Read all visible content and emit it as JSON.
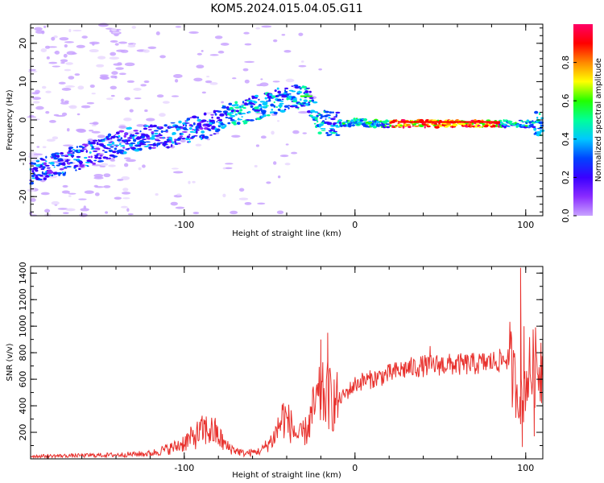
{
  "title": "KOM5.2024.015.04.05.G11",
  "chart_data": [
    {
      "type": "heatmap",
      "xlabel": "Height of straight line (km)",
      "ylabel": "Frequency (Hz)",
      "xlim": [
        -190,
        110
      ],
      "ylim": [
        -25,
        25
      ],
      "x_ticks": [
        -100,
        0,
        100
      ],
      "y_ticks": [
        -20,
        -10,
        0,
        10,
        20
      ],
      "colorbar": {
        "label": "Normalized spectral amplitude",
        "range": [
          0,
          1
        ],
        "ticks": [
          "0.0",
          "0.2",
          "0.4",
          "0.6",
          "0.8"
        ],
        "colormap": [
          "#e9d8ff",
          "#c9a3ff",
          "#8a2bff",
          "#3a00ff",
          "#0044ff",
          "#00c8ff",
          "#00ff99",
          "#22ff00",
          "#ffff00",
          "#ff8800",
          "#ff0000",
          "#ff0066"
        ]
      },
      "ridge": {
        "x": [
          -190,
          -170,
          -150,
          -130,
          -110,
          -90,
          -75,
          -60,
          -45,
          -35,
          -28,
          -22,
          -15,
          -5,
          0,
          10,
          20,
          40,
          60,
          80,
          90,
          100,
          110
        ],
        "y": [
          -14,
          -11,
          -8,
          -5,
          -4,
          -2,
          1,
          3,
          5,
          6,
          6,
          0,
          -1,
          -1,
          -0.5,
          -1,
          -1,
          -1,
          -1,
          -1,
          -1,
          -1,
          -1
        ]
      }
    },
    {
      "type": "line",
      "xlabel": "Height of straight line (km)",
      "ylabel": "SNR (v/v)",
      "xlim": [
        -190,
        110
      ],
      "ylim": [
        0,
        1450
      ],
      "x_ticks": [
        -100,
        0,
        100
      ],
      "y_ticks": [
        200,
        400,
        600,
        800,
        1000,
        1200,
        1400
      ],
      "color": "#e8312d",
      "envelope": {
        "x": [
          -190,
          -160,
          -140,
          -120,
          -105,
          -95,
          -88,
          -82,
          -75,
          -65,
          -55,
          -48,
          -42,
          -38,
          -33,
          -28,
          -24,
          -20,
          -16,
          -12,
          -8,
          -4,
          0,
          5,
          10,
          20,
          30,
          40,
          50,
          60,
          70,
          80,
          85,
          90,
          93,
          96,
          98,
          100,
          104,
          108,
          110
        ],
        "y": [
          20,
          25,
          30,
          40,
          90,
          160,
          220,
          200,
          90,
          40,
          60,
          150,
          320,
          260,
          160,
          220,
          380,
          470,
          480,
          420,
          460,
          510,
          560,
          590,
          600,
          640,
          680,
          700,
          710,
          710,
          715,
          730,
          740,
          760,
          600,
          500,
          400,
          600,
          680,
          700,
          720
        ]
      },
      "spikes": [
        {
          "x": -20,
          "y": 900
        },
        {
          "x": -16,
          "y": 950
        },
        {
          "x": 44,
          "y": 850
        },
        {
          "x": 97,
          "y": 1440
        },
        {
          "x": 99,
          "y": 1000
        },
        {
          "x": 98,
          "y": 90
        },
        {
          "x": 105,
          "y": 170
        },
        {
          "x": 110,
          "y": 1250
        }
      ]
    }
  ]
}
